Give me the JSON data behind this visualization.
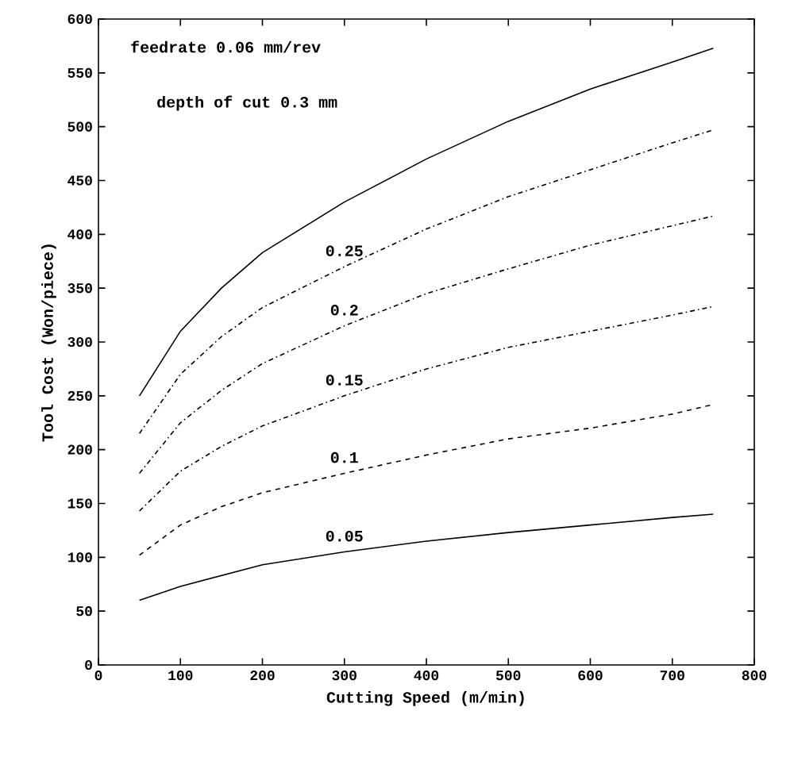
{
  "chart_data": {
    "type": "line",
    "xlabel": "Cutting Speed (m/min)",
    "ylabel": "Tool Cost (Won/piece)",
    "annotations": [
      "feedrate 0.06 mm/rev",
      "depth of cut 0.3 mm"
    ],
    "x": [
      50,
      100,
      150,
      200,
      300,
      400,
      500,
      600,
      700,
      750
    ],
    "series": [
      {
        "color": "#000000",
        "line_style": "solid",
        "values": [
          250,
          310,
          350,
          383,
          430,
          470,
          505,
          535,
          560,
          573
        ]
      },
      {
        "name": "0.25",
        "color": "#000000",
        "line_style": "dashdot",
        "values": [
          215,
          270,
          305,
          332,
          370,
          405,
          435,
          460,
          485,
          497
        ]
      },
      {
        "name": "0.2",
        "color": "#000000",
        "line_style": "dashdot",
        "values": [
          178,
          225,
          255,
          280,
          315,
          345,
          368,
          390,
          408,
          417
        ]
      },
      {
        "name": "0.15",
        "color": "#000000",
        "line_style": "dashdot",
        "values": [
          143,
          180,
          203,
          222,
          250,
          275,
          295,
          310,
          325,
          333
        ]
      },
      {
        "name": "0.1",
        "color": "#000000",
        "line_style": "dashed",
        "values": [
          102,
          130,
          147,
          160,
          178,
          195,
          210,
          220,
          233,
          242
        ]
      },
      {
        "name": "0.05",
        "color": "#000000",
        "line_style": "solid",
        "values": [
          60,
          73,
          83,
          93,
          105,
          115,
          123,
          130,
          137,
          140
        ]
      }
    ],
    "xlim": [
      0,
      800
    ],
    "xticks": [
      0,
      100,
      200,
      300,
      400,
      500,
      600,
      700,
      800
    ],
    "ylim": [
      0,
      600
    ],
    "yticks": [
      0,
      50,
      100,
      150,
      200,
      250,
      300,
      350,
      400,
      450,
      500,
      550,
      600
    ],
    "marker": "none"
  }
}
